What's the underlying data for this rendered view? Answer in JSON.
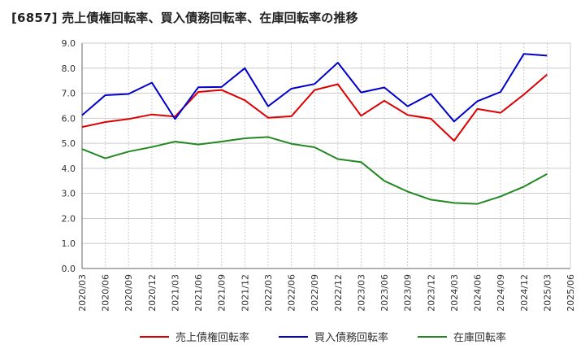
{
  "chart_data": {
    "type": "line",
    "title": "[6857]  売上債権回転率、買入債務回転率、在庫回転率の推移",
    "xlabel": "",
    "ylabel": "",
    "ylim": [
      0,
      9
    ],
    "yticks": [
      "0.0",
      "1.0",
      "2.0",
      "3.0",
      "4.0",
      "5.0",
      "6.0",
      "7.0",
      "8.0",
      "9.0"
    ],
    "grid": true,
    "legend_position": "bottom",
    "categories": [
      "2020/03",
      "2020/06",
      "2020/09",
      "2020/12",
      "2021/03",
      "2021/06",
      "2021/09",
      "2021/12",
      "2022/03",
      "2022/06",
      "2022/09",
      "2022/12",
      "2023/03",
      "2023/06",
      "2023/09",
      "2023/12",
      "2024/03",
      "2024/06",
      "2024/09",
      "2024/12",
      "2025/03",
      "2025/06"
    ],
    "series": [
      {
        "name": "売上債権回転率",
        "color": "#dd0000",
        "values": [
          5.65,
          5.85,
          5.97,
          6.15,
          6.07,
          7.05,
          7.13,
          6.72,
          6.02,
          6.08,
          7.13,
          7.36,
          6.1,
          6.7,
          6.13,
          5.98,
          5.1,
          6.37,
          6.22,
          6.95,
          7.75,
          null
        ]
      },
      {
        "name": "買入債務回転率",
        "color": "#0000cc",
        "values": [
          6.12,
          6.92,
          6.97,
          7.42,
          5.97,
          7.24,
          7.25,
          8.0,
          6.48,
          7.18,
          7.37,
          8.22,
          7.03,
          7.23,
          6.48,
          6.97,
          5.87,
          6.68,
          7.05,
          8.57,
          8.5,
          null
        ]
      },
      {
        "name": "在庫回転率",
        "color": "#228822",
        "values": [
          4.77,
          4.4,
          4.67,
          4.85,
          5.07,
          4.95,
          5.07,
          5.2,
          5.25,
          4.98,
          4.84,
          4.37,
          4.25,
          3.5,
          3.07,
          2.75,
          2.62,
          2.58,
          2.88,
          3.27,
          3.78,
          null
        ]
      }
    ]
  }
}
